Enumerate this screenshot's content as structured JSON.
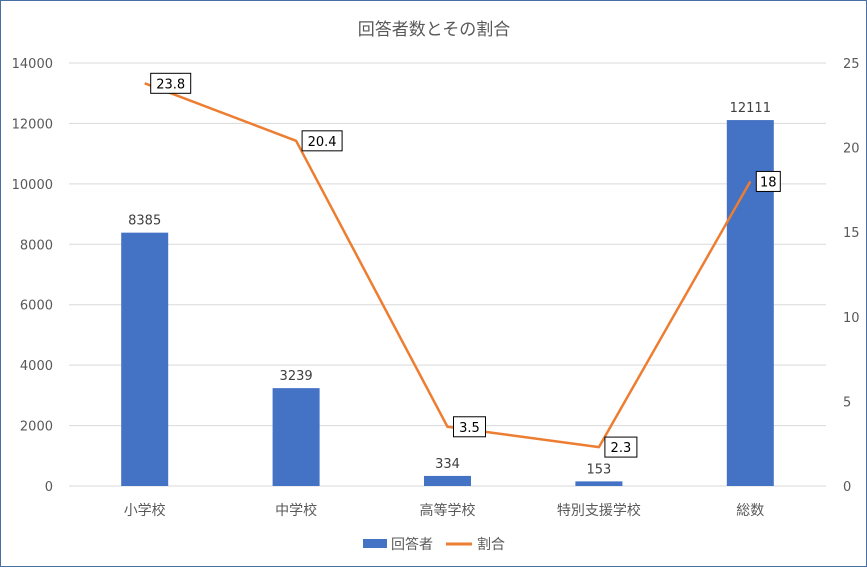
{
  "chart_data": {
    "type": "bar",
    "title": "回答者数とその割合",
    "categories": [
      "小学校",
      "中学校",
      "高等学校",
      "特別支援学校",
      "総数"
    ],
    "series": [
      {
        "name": "回答者",
        "type": "bar",
        "axis": "left",
        "color": "#4472c4",
        "values": [
          8385,
          3239,
          334,
          153,
          12111
        ],
        "labels": [
          "8385",
          "3239",
          "334",
          "153",
          "12111"
        ]
      },
      {
        "name": "割合",
        "type": "line",
        "axis": "right",
        "color": "#ed7d31",
        "values": [
          23.8,
          20.4,
          3.5,
          2.3,
          18
        ],
        "labels": [
          "23.8",
          "20.4",
          "3.5",
          "2.3",
          "18"
        ]
      }
    ],
    "y_left": {
      "min": 0,
      "max": 14000,
      "ticks": [
        0,
        2000,
        4000,
        6000,
        8000,
        10000,
        12000,
        14000
      ],
      "tick_labels": [
        "0",
        "2000",
        "4000",
        "6000",
        "8000",
        "10000",
        "12000",
        "14000"
      ]
    },
    "y_right": {
      "min": 0,
      "max": 25,
      "ticks": [
        0,
        5,
        10,
        15,
        20,
        25
      ],
      "tick_labels": [
        "0",
        "5",
        "10",
        "15",
        "20",
        "25"
      ]
    },
    "grid": true,
    "legend_position": "bottom",
    "gridline_color": "#d9d9d9",
    "text_color": "#595959"
  }
}
